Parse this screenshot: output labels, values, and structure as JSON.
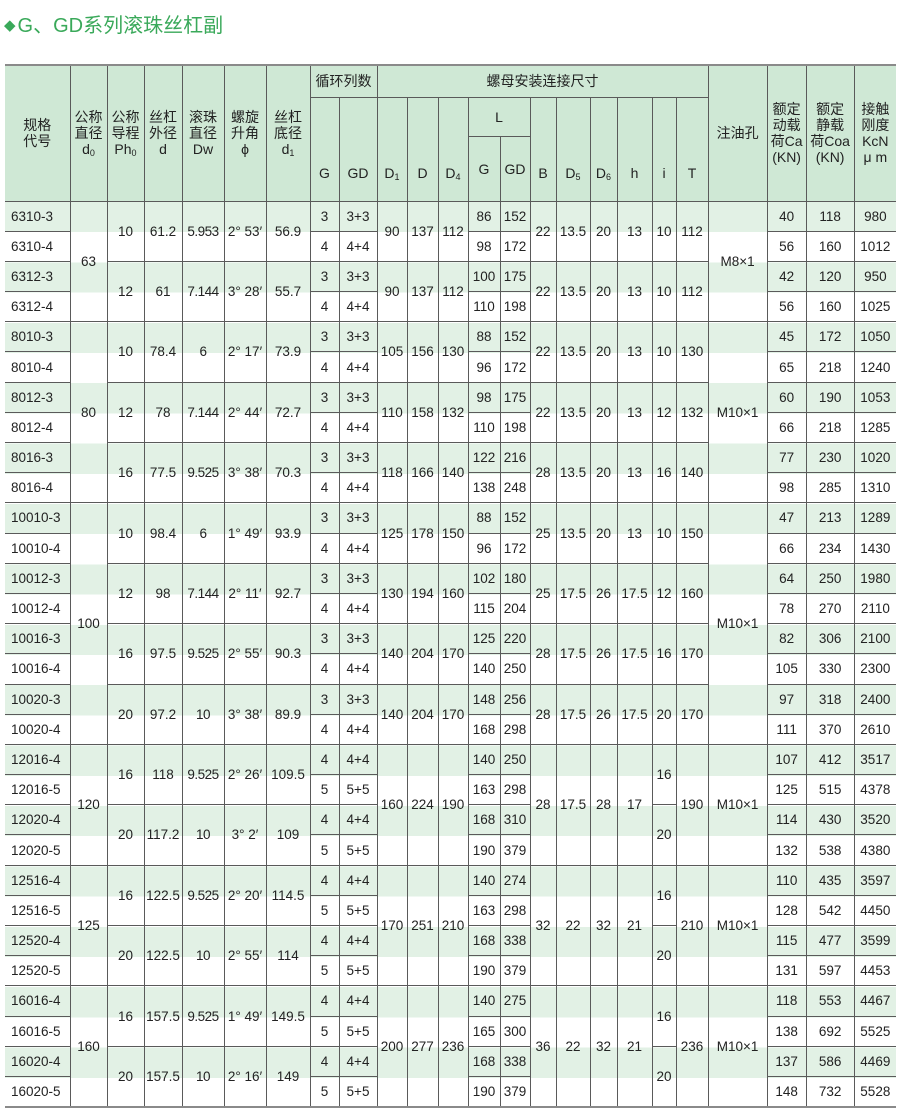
{
  "title": {
    "marker": "◆",
    "text": "G、GD系列滚珠丝杠副"
  },
  "colors": {
    "title": "#3aa95a",
    "header_bg": "#cfe8d5",
    "stripe": "#e2f1e5"
  },
  "header": {
    "code": "规格\n代号",
    "d0": {
      "text": "公称\n直径\n",
      "main": "d",
      "sub": "0"
    },
    "ph0": {
      "text": "公称\n导程\n",
      "main": "Ph",
      "sub": "0"
    },
    "d": {
      "text": "丝杠\n外径\nd"
    },
    "dw": {
      "text": "滚珠\n直径\nDw"
    },
    "phi": {
      "text": "螺旋\n升角\nϕ"
    },
    "d1": {
      "text": "丝杠\n底径\n",
      "main": "d",
      "sub": "1"
    },
    "circuits": "循环列数",
    "circ_g": "G",
    "circ_gd": "GD",
    "mount": "螺母安装连接尺寸",
    "D1": {
      "main": "D",
      "sub": "1"
    },
    "D": "D",
    "D4": {
      "main": "D",
      "sub": "4"
    },
    "L": "L",
    "L_g": "G",
    "L_gd": "GD",
    "B": "B",
    "D5": {
      "main": "D",
      "sub": "5"
    },
    "D6": {
      "main": "D",
      "sub": "6"
    },
    "h": "h",
    "i": "i",
    "T": "T",
    "oil": "注油孔",
    "ca": "额定\n动载\n荷Ca\n(KN)",
    "coa": "额定\n静载\n荷Coa\n(KN)",
    "kcn": "接触\n刚度\nKcN\nμ m"
  },
  "d0_groups": [
    {
      "d0": "63",
      "rows": 4
    },
    {
      "d0": "80",
      "rows": 6
    },
    {
      "d0": "100",
      "rows": 8
    },
    {
      "d0": "120",
      "rows": 4
    },
    {
      "d0": "125",
      "rows": 4
    },
    {
      "d0": "160",
      "rows": 4
    }
  ],
  "pitch_groups": [
    {
      "ph0": "10",
      "d": "61.2",
      "dw": "5.953",
      "phi": "2° 53′",
      "d1": "56.9",
      "i": "10"
    },
    {
      "ph0": "12",
      "d": "61",
      "dw": "7.144",
      "phi": "3° 28′",
      "d1": "55.7",
      "i": "10"
    },
    {
      "ph0": "10",
      "d": "78.4",
      "dw": "6",
      "phi": "2° 17′",
      "d1": "73.9",
      "i": "10"
    },
    {
      "ph0": "12",
      "d": "78",
      "dw": "7.144",
      "phi": "2° 44′",
      "d1": "72.7",
      "i": "12"
    },
    {
      "ph0": "16",
      "d": "77.5",
      "dw": "9.525",
      "phi": "3° 38′",
      "d1": "70.3",
      "i": "16"
    },
    {
      "ph0": "10",
      "d": "98.4",
      "dw": "6",
      "phi": "1° 49′",
      "d1": "93.9",
      "i": "10"
    },
    {
      "ph0": "12",
      "d": "98",
      "dw": "7.144",
      "phi": "2° 11′",
      "d1": "92.7",
      "i": "12"
    },
    {
      "ph0": "16",
      "d": "97.5",
      "dw": "9.525",
      "phi": "2° 55′",
      "d1": "90.3",
      "i": "16"
    },
    {
      "ph0": "20",
      "d": "97.2",
      "dw": "10",
      "phi": "3° 38′",
      "d1": "89.9",
      "i": "20"
    },
    {
      "ph0": "16",
      "d": "118",
      "dw": "9.525",
      "phi": "2° 26′",
      "d1": "109.5",
      "i": "16"
    },
    {
      "ph0": "20",
      "d": "117.2",
      "dw": "10",
      "phi": "3° 2′",
      "d1": "109",
      "i": "20"
    },
    {
      "ph0": "16",
      "d": "122.5",
      "dw": "9.525",
      "phi": "2° 20′",
      "d1": "114.5",
      "i": "16"
    },
    {
      "ph0": "20",
      "d": "122.5",
      "dw": "10",
      "phi": "2° 55′",
      "d1": "114",
      "i": "20"
    },
    {
      "ph0": "16",
      "d": "157.5",
      "dw": "9.525",
      "phi": "1° 49′",
      "d1": "149.5",
      "i": "16"
    },
    {
      "ph0": "20",
      "d": "157.5",
      "dw": "10",
      "phi": "2° 16′",
      "d1": "149",
      "i": "20"
    }
  ],
  "mount_groups": [
    {
      "rows": 2,
      "D1": "90",
      "D": "137",
      "D4": "112",
      "B": "22",
      "D5": "13.5",
      "D6": "20",
      "h": "13",
      "T": "112"
    },
    {
      "rows": 2,
      "D1": "90",
      "D": "137",
      "D4": "112",
      "B": "22",
      "D5": "13.5",
      "D6": "20",
      "h": "13",
      "T": "112"
    },
    {
      "rows": 2,
      "D1": "105",
      "D": "156",
      "D4": "130",
      "B": "22",
      "D5": "13.5",
      "D6": "20",
      "h": "13",
      "T": "130"
    },
    {
      "rows": 2,
      "D1": "110",
      "D": "158",
      "D4": "132",
      "B": "22",
      "D5": "13.5",
      "D6": "20",
      "h": "13",
      "T": "132"
    },
    {
      "rows": 2,
      "D1": "118",
      "D": "166",
      "D4": "140",
      "B": "28",
      "D5": "13.5",
      "D6": "20",
      "h": "13",
      "T": "140"
    },
    {
      "rows": 2,
      "D1": "125",
      "D": "178",
      "D4": "150",
      "B": "25",
      "D5": "13.5",
      "D6": "20",
      "h": "13",
      "T": "150"
    },
    {
      "rows": 2,
      "D1": "130",
      "D": "194",
      "D4": "160",
      "B": "25",
      "D5": "17.5",
      "D6": "26",
      "h": "17.5",
      "T": "160"
    },
    {
      "rows": 2,
      "D1": "140",
      "D": "204",
      "D4": "170",
      "B": "28",
      "D5": "17.5",
      "D6": "26",
      "h": "17.5",
      "T": "170"
    },
    {
      "rows": 2,
      "D1": "140",
      "D": "204",
      "D4": "170",
      "B": "28",
      "D5": "17.5",
      "D6": "26",
      "h": "17.5",
      "T": "170"
    },
    {
      "rows": 4,
      "D1": "160",
      "D": "224",
      "D4": "190",
      "B": "28",
      "D5": "17.5",
      "D6": "28",
      "h": "17",
      "T": "190"
    },
    {
      "rows": 4,
      "D1": "170",
      "D": "251",
      "D4": "210",
      "B": "32",
      "D5": "22",
      "D6": "32",
      "h": "21",
      "T": "210"
    },
    {
      "rows": 4,
      "D1": "200",
      "D": "277",
      "D4": "236",
      "B": "36",
      "D5": "22",
      "D6": "32",
      "h": "21",
      "T": "236"
    }
  ],
  "oil_groups": [
    {
      "rows": 4,
      "oil": "M8×1"
    },
    {
      "rows": 6,
      "oil": "M10×1"
    },
    {
      "rows": 8,
      "oil": "M10×1"
    },
    {
      "rows": 4,
      "oil": "M10×1"
    },
    {
      "rows": 4,
      "oil": "M10×1"
    },
    {
      "rows": 4,
      "oil": "M10×1"
    }
  ],
  "rows": [
    {
      "code": "6310-3",
      "g": "3",
      "gd": "3+3",
      "l_g": "86",
      "l_gd": "152",
      "ca": "40",
      "coa": "118",
      "kcn": "980"
    },
    {
      "code": "6310-4",
      "g": "4",
      "gd": "4+4",
      "l_g": "98",
      "l_gd": "172",
      "ca": "56",
      "coa": "160",
      "kcn": "1012"
    },
    {
      "code": "6312-3",
      "g": "3",
      "gd": "3+3",
      "l_g": "100",
      "l_gd": "175",
      "ca": "42",
      "coa": "120",
      "kcn": "950"
    },
    {
      "code": "6312-4",
      "g": "4",
      "gd": "4+4",
      "l_g": "110",
      "l_gd": "198",
      "ca": "56",
      "coa": "160",
      "kcn": "1025"
    },
    {
      "code": "8010-3",
      "g": "3",
      "gd": "3+3",
      "l_g": "88",
      "l_gd": "152",
      "ca": "45",
      "coa": "172",
      "kcn": "1050"
    },
    {
      "code": "8010-4",
      "g": "4",
      "gd": "4+4",
      "l_g": "96",
      "l_gd": "172",
      "ca": "65",
      "coa": "218",
      "kcn": "1240"
    },
    {
      "code": "8012-3",
      "g": "3",
      "gd": "3+3",
      "l_g": "98",
      "l_gd": "175",
      "ca": "60",
      "coa": "190",
      "kcn": "1053"
    },
    {
      "code": "8012-4",
      "g": "4",
      "gd": "4+4",
      "l_g": "110",
      "l_gd": "198",
      "ca": "66",
      "coa": "218",
      "kcn": "1285"
    },
    {
      "code": "8016-3",
      "g": "3",
      "gd": "3+3",
      "l_g": "122",
      "l_gd": "216",
      "ca": "77",
      "coa": "230",
      "kcn": "1020"
    },
    {
      "code": "8016-4",
      "g": "4",
      "gd": "4+4",
      "l_g": "138",
      "l_gd": "248",
      "ca": "98",
      "coa": "285",
      "kcn": "1310"
    },
    {
      "code": "10010-3",
      "g": "3",
      "gd": "3+3",
      "l_g": "88",
      "l_gd": "152",
      "ca": "47",
      "coa": "213",
      "kcn": "1289"
    },
    {
      "code": "10010-4",
      "g": "4",
      "gd": "4+4",
      "l_g": "96",
      "l_gd": "172",
      "ca": "66",
      "coa": "234",
      "kcn": "1430"
    },
    {
      "code": "10012-3",
      "g": "3",
      "gd": "3+3",
      "l_g": "102",
      "l_gd": "180",
      "ca": "64",
      "coa": "250",
      "kcn": "1980"
    },
    {
      "code": "10012-4",
      "g": "4",
      "gd": "4+4",
      "l_g": "115",
      "l_gd": "204",
      "ca": "78",
      "coa": "270",
      "kcn": "2110"
    },
    {
      "code": "10016-3",
      "g": "3",
      "gd": "3+3",
      "l_g": "125",
      "l_gd": "220",
      "ca": "82",
      "coa": "306",
      "kcn": "2100"
    },
    {
      "code": "10016-4",
      "g": "4",
      "gd": "4+4",
      "l_g": "140",
      "l_gd": "250",
      "ca": "105",
      "coa": "330",
      "kcn": "2300"
    },
    {
      "code": "10020-3",
      "g": "3",
      "gd": "3+3",
      "l_g": "148",
      "l_gd": "256",
      "ca": "97",
      "coa": "318",
      "kcn": "2400"
    },
    {
      "code": "10020-4",
      "g": "4",
      "gd": "4+4",
      "l_g": "168",
      "l_gd": "298",
      "ca": "111",
      "coa": "370",
      "kcn": "2610"
    },
    {
      "code": "12016-4",
      "g": "4",
      "gd": "4+4",
      "l_g": "140",
      "l_gd": "250",
      "ca": "107",
      "coa": "412",
      "kcn": "3517"
    },
    {
      "code": "12016-5",
      "g": "5",
      "gd": "5+5",
      "l_g": "163",
      "l_gd": "298",
      "ca": "125",
      "coa": "515",
      "kcn": "4378"
    },
    {
      "code": "12020-4",
      "g": "4",
      "gd": "4+4",
      "l_g": "168",
      "l_gd": "310",
      "ca": "114",
      "coa": "430",
      "kcn": "3520"
    },
    {
      "code": "12020-5",
      "g": "5",
      "gd": "5+5",
      "l_g": "190",
      "l_gd": "379",
      "ca": "132",
      "coa": "538",
      "kcn": "4380"
    },
    {
      "code": "12516-4",
      "g": "4",
      "gd": "4+4",
      "l_g": "140",
      "l_gd": "274",
      "ca": "110",
      "coa": "435",
      "kcn": "3597"
    },
    {
      "code": "12516-5",
      "g": "5",
      "gd": "5+5",
      "l_g": "163",
      "l_gd": "298",
      "ca": "128",
      "coa": "542",
      "kcn": "4450"
    },
    {
      "code": "12520-4",
      "g": "4",
      "gd": "4+4",
      "l_g": "168",
      "l_gd": "338",
      "ca": "115",
      "coa": "477",
      "kcn": "3599"
    },
    {
      "code": "12520-5",
      "g": "5",
      "gd": "5+5",
      "l_g": "190",
      "l_gd": "379",
      "ca": "131",
      "coa": "597",
      "kcn": "4453"
    },
    {
      "code": "16016-4",
      "g": "4",
      "gd": "4+4",
      "l_g": "140",
      "l_gd": "275",
      "ca": "118",
      "coa": "553",
      "kcn": "4467"
    },
    {
      "code": "16016-5",
      "g": "5",
      "gd": "5+5",
      "l_g": "165",
      "l_gd": "300",
      "ca": "138",
      "coa": "692",
      "kcn": "5525"
    },
    {
      "code": "16020-4",
      "g": "4",
      "gd": "4+4",
      "l_g": "168",
      "l_gd": "338",
      "ca": "137",
      "coa": "586",
      "kcn": "4469"
    },
    {
      "code": "16020-5",
      "g": "5",
      "gd": "5+5",
      "l_g": "190",
      "l_gd": "379",
      "ca": "148",
      "coa": "732",
      "kcn": "5528"
    }
  ]
}
